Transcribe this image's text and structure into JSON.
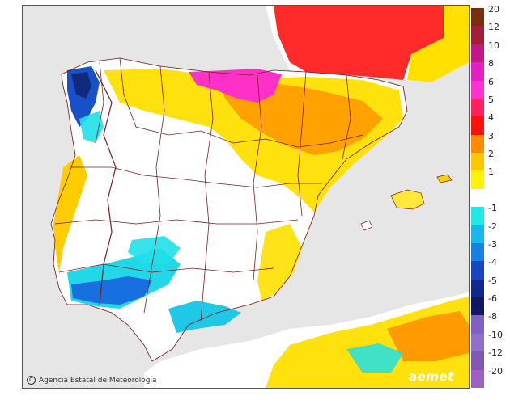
{
  "map": {
    "credit_text": "Agencia Estatal de Meteorología",
    "brand": "aemet",
    "colors": {
      "sea": "#e6e6e6",
      "land": "#ffffff",
      "border": "#7a1f1f"
    }
  },
  "legend": {
    "entries": [
      {
        "label": "20",
        "color": "#7a2e0e"
      },
      {
        "label": "12",
        "color": "#a0203a"
      },
      {
        "label": "10",
        "color": "#c0188a"
      },
      {
        "label": "8",
        "color": "#e020c0"
      },
      {
        "label": "6",
        "color": "#ff30d0"
      },
      {
        "label": "5",
        "color": "#ff2060"
      },
      {
        "label": "4",
        "color": "#ff1010"
      },
      {
        "label": "3",
        "color": "#ff8a00"
      },
      {
        "label": "2",
        "color": "#ffc800"
      },
      {
        "label": "1",
        "color": "#fff400"
      },
      {
        "label": "",
        "color": "#ffffff"
      },
      {
        "label": "-1",
        "color": "#20e8e8"
      },
      {
        "label": "-2",
        "color": "#18b8e8"
      },
      {
        "label": "-3",
        "color": "#1880e0"
      },
      {
        "label": "-4",
        "color": "#1848c0"
      },
      {
        "label": "-5",
        "color": "#102890"
      },
      {
        "label": "-6",
        "color": "#101860"
      },
      {
        "label": "-8",
        "color": "#8060c0"
      },
      {
        "label": "-10",
        "color": "#9070c8"
      },
      {
        "label": "-12",
        "color": "#8058b0"
      },
      {
        "label": "-20",
        "color": "#a060c0"
      }
    ]
  }
}
